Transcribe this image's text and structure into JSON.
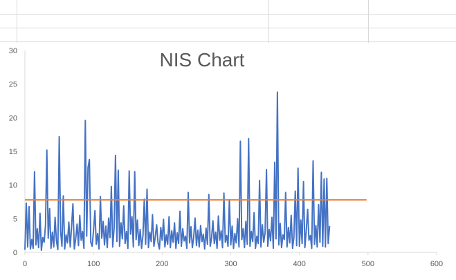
{
  "chart_data": {
    "type": "line",
    "title": "NIS Chart",
    "xlim": [
      0,
      600
    ],
    "ylim": [
      0,
      30
    ],
    "x_ticks": [
      0,
      100,
      200,
      300,
      400,
      500,
      600
    ],
    "y_ticks": [
      0,
      5,
      10,
      15,
      20,
      25,
      30
    ],
    "grid": false,
    "series": [
      {
        "color": "#4472c4",
        "x_start": 0,
        "x_step": 2,
        "values": [
          0.4,
          7.3,
          0.8,
          6.8,
          0.5,
          1.9,
          0.6,
          12.0,
          1.1,
          3.5,
          0.7,
          5.8,
          0.3,
          2.2,
          1.5,
          4.1,
          15.2,
          2.1,
          6.5,
          0.6,
          3.0,
          0.8,
          5.2,
          1.7,
          0.4,
          17.2,
          3.1,
          0.9,
          8.4,
          0.5,
          2.6,
          1.4,
          4.5,
          0.8,
          3.8,
          7.2,
          0.5,
          2.0,
          4.2,
          1.0,
          5.5,
          1.8,
          3.1,
          0.6,
          19.6,
          2.4,
          12.6,
          13.8,
          1.5,
          0.9,
          3.3,
          6.2,
          1.2,
          2.8,
          0.5,
          8.3,
          2.1,
          4.6,
          1.1,
          3.9,
          0.7,
          5.1,
          2.2,
          9.8,
          0.8,
          3.6,
          14.4,
          1.6,
          12.2,
          0.9,
          4.4,
          2.0,
          6.9,
          1.3,
          3.1,
          0.6,
          12.1,
          2.7,
          5.3,
          0.8,
          12.0,
          1.9,
          4.8,
          1.0,
          3.4,
          0.6,
          2.5,
          7.9,
          1.2,
          9.4,
          0.7,
          3.0,
          1.6,
          5.6,
          0.9,
          2.3,
          4.1,
          1.4,
          0.5,
          3.7,
          1.8,
          4.9,
          0.8,
          2.6,
          1.2,
          5.3,
          0.7,
          3.2,
          1.5,
          4.4,
          0.6,
          2.9,
          1.3,
          6.1,
          0.9,
          3.5,
          1.7,
          2.4,
          0.6,
          8.9,
          1.4,
          3.8,
          0.7,
          2.2,
          5.1,
          1.0,
          3.3,
          0.8,
          4.0,
          1.6,
          2.7,
          0.5,
          3.6,
          1.2,
          8.6,
          0.9,
          2.1,
          4.7,
          1.3,
          3.0,
          0.6,
          5.4,
          1.8,
          3.2,
          0.7,
          8.8,
          1.5,
          2.5,
          0.9,
          7.8,
          1.1,
          3.9,
          0.6,
          2.8,
          1.4,
          5.0,
          0.8,
          16.5,
          1.9,
          3.5,
          0.7,
          4.6,
          1.2,
          16.9,
          0.9,
          3.1,
          1.6,
          5.9,
          0.6,
          2.4,
          1.3,
          10.7,
          0.8,
          4.1,
          1.5,
          2.9,
          12.3,
          0.9,
          3.4,
          1.7,
          5.2,
          0.6,
          13.4,
          2.0,
          23.8,
          1.1,
          4.3,
          0.7,
          2.6,
          1.9,
          8.9,
          0.8,
          3.7,
          1.4,
          5.5,
          0.6,
          2.2,
          9.1,
          1.0,
          12.5,
          0.9,
          4.8,
          1.3,
          10.5,
          0.7,
          3.3,
          6.4,
          1.8,
          2.5,
          0.6,
          13.6,
          1.2,
          4.0,
          0.8,
          7.1,
          1.5,
          11.9,
          0.9,
          10.9,
          0.8,
          11.0,
          1.3,
          3.9
        ]
      },
      {
        "color": "#ed7d31",
        "x": [
          0,
          498
        ],
        "values": [
          7.8,
          7.8
        ]
      }
    ]
  }
}
